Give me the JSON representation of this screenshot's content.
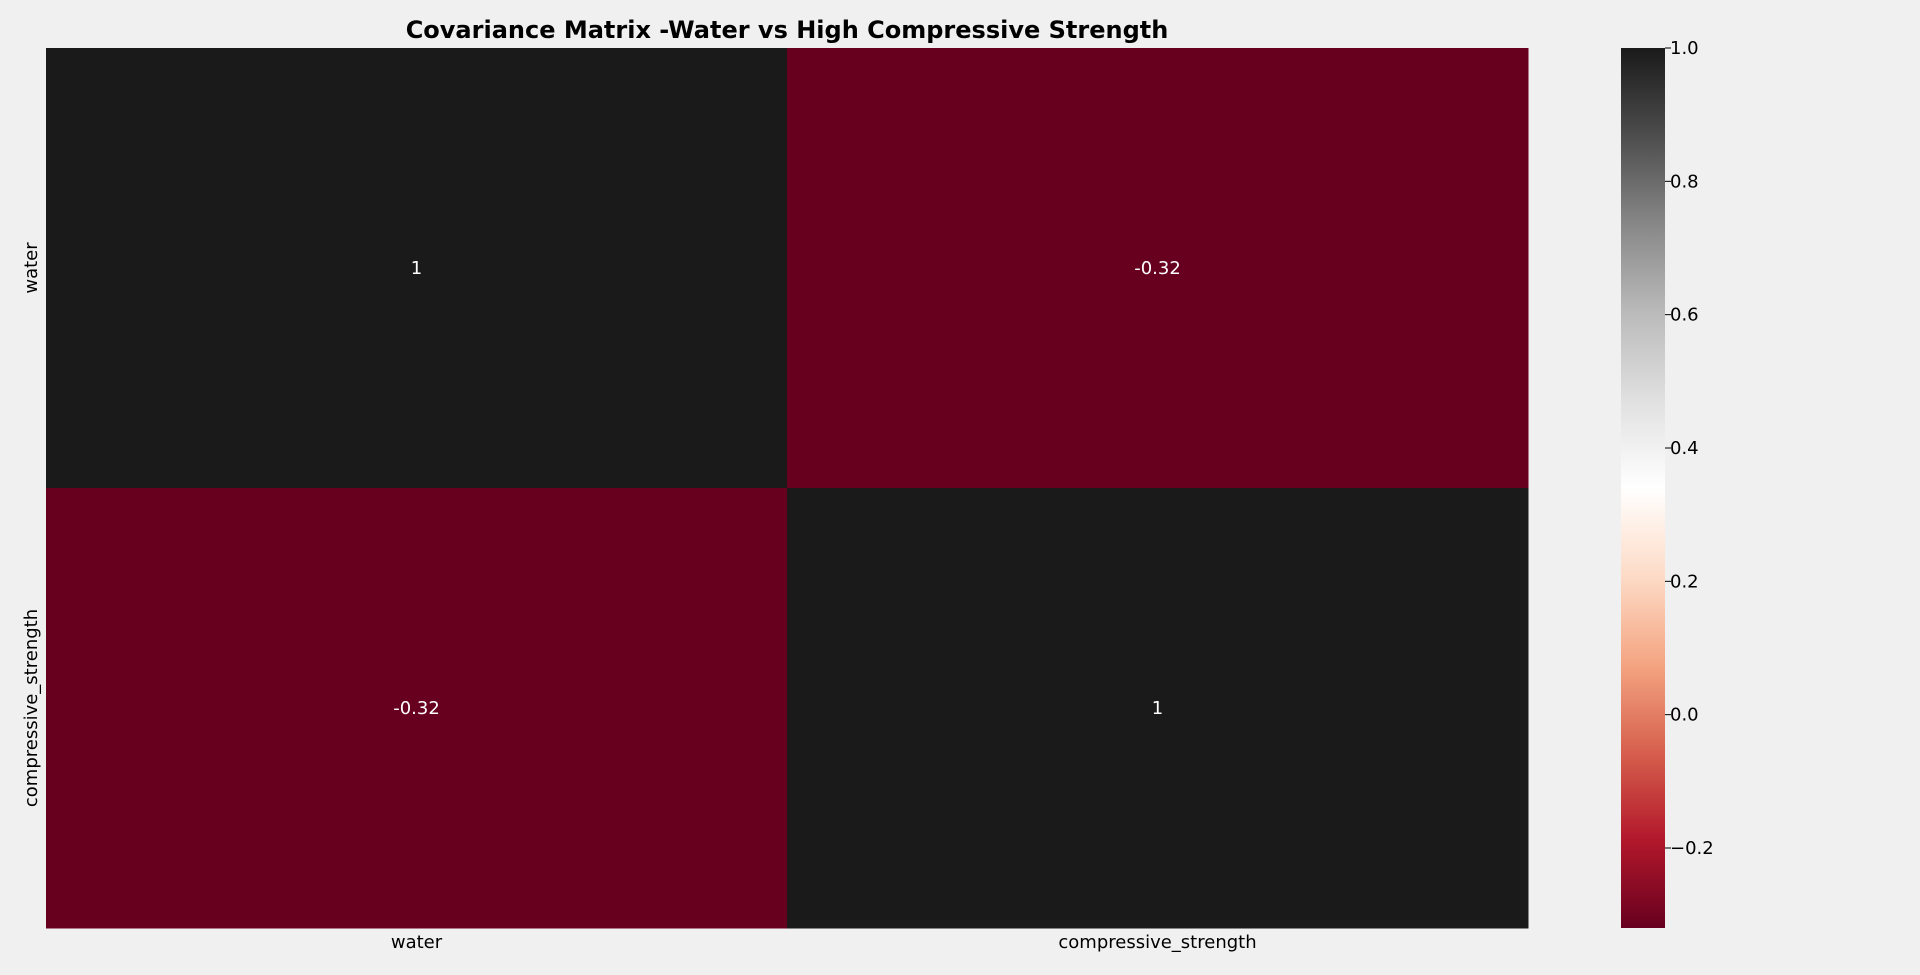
{
  "chart_data": {
    "type": "heatmap",
    "title": "Covariance Matrix -Water vs High Compressive Strength",
    "x_categories": [
      "water",
      "compressive_strength"
    ],
    "y_categories": [
      "water",
      "compressive_strength"
    ],
    "values": [
      [
        1,
        -0.32
      ],
      [
        -0.32,
        1
      ]
    ],
    "annotations": [
      [
        "1",
        "-0.32"
      ],
      [
        "-0.32",
        "1"
      ]
    ],
    "colorbar": {
      "vmin": -0.32,
      "vmax": 1.0,
      "ticks": [
        -0.2,
        0.0,
        0.2,
        0.4,
        0.6,
        0.8,
        1.0
      ],
      "tick_labels": [
        "−0.2",
        "0.0",
        "0.2",
        "0.4",
        "0.6",
        "0.8",
        "1.0"
      ],
      "colormap": "RdGy"
    },
    "grid": false,
    "legend": "colorbar-right"
  },
  "colors": {
    "background": "#f0f0f0",
    "high": "#1a1a1a",
    "low": "#67001f",
    "text": "#000000",
    "annotation_text": "#ffffff"
  }
}
